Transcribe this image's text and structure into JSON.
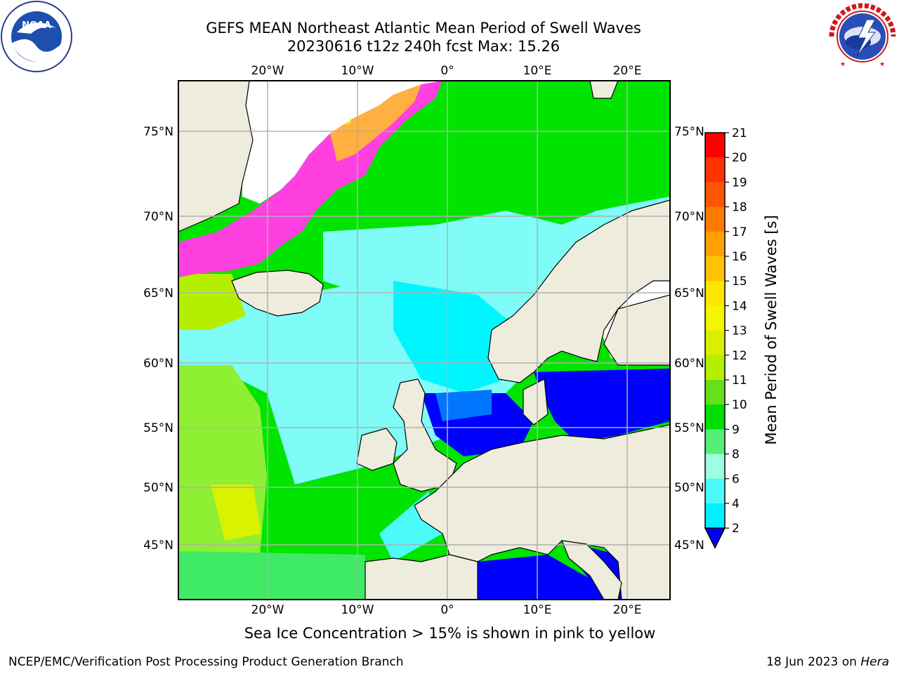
{
  "header": {
    "title_line1": "GEFS MEAN Northeast Atlantic Mean Period of Swell Waves",
    "title_line2": "20230616 t12z 240h fcst   Max: 15.26"
  },
  "logos": {
    "left": {
      "name": "NOAA",
      "ring_text": "NATIONAL OCEANIC AND ATMOSPHERIC ADMINISTRATION",
      "ring_text_bottom": "U.S. DEPARTMENT OF COMMERCE"
    },
    "right": {
      "name": "National Weather Service",
      "ring_text": "NATIONAL WEATHER SERVICE"
    }
  },
  "map": {
    "lon_ticks": [
      "20°W",
      "10°W",
      "0°",
      "10°E",
      "20°E"
    ],
    "lat_ticks": [
      "75°N",
      "70°N",
      "65°N",
      "60°N",
      "55°N",
      "50°N",
      "45°N"
    ],
    "grid": true,
    "colors": {
      "land": "#eeecdc",
      "ice_pink": "#ff40e0",
      "ice_orange": "#ffb040",
      "ice_yellow": "#ffe840"
    }
  },
  "colorbar": {
    "label": "Mean Period of Swell Waves [s]",
    "ticks": [
      "21",
      "20",
      "19",
      "18",
      "17",
      "16",
      "15",
      "14",
      "13",
      "12",
      "11",
      "10",
      "9",
      "8",
      "6",
      "4",
      "2"
    ],
    "colors": [
      "#ff0000",
      "#ff3300",
      "#ff5500",
      "#ff7a00",
      "#ff9f00",
      "#ffc200",
      "#ffe600",
      "#f5f500",
      "#d8f000",
      "#b4ef00",
      "#66e01a",
      "#00dd00",
      "#55ef77",
      "#9effe0",
      "#4dfafa",
      "#00f0ff",
      "#0076ff",
      "#0000ff"
    ],
    "extend": "min"
  },
  "caption": "Sea Ice Concentration > 15% is shown in pink to yellow",
  "footer": {
    "left": "NCEP/EMC/Verification Post Processing Product Generation Branch",
    "right_prefix": "18 Jun 2023 on ",
    "right_host": "Hera"
  }
}
